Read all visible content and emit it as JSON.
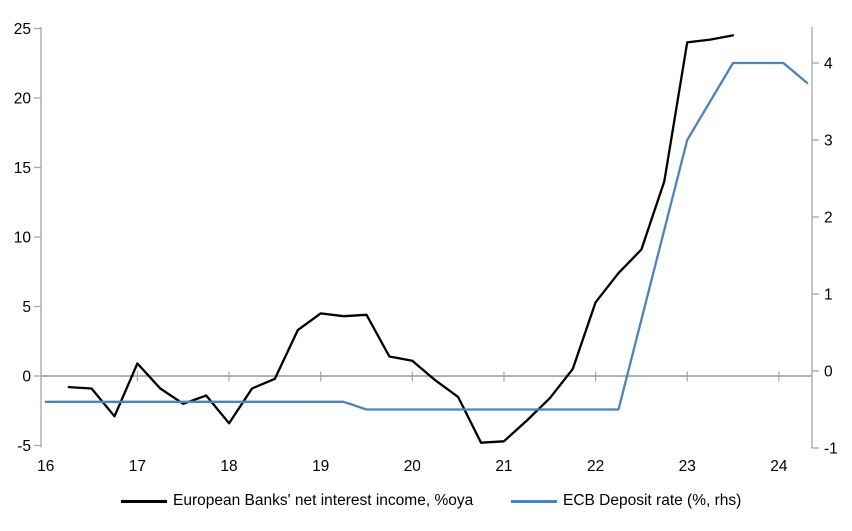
{
  "chart_data": {
    "type": "line",
    "title": "",
    "x_axis": {
      "ticks": [
        16,
        17,
        18,
        19,
        20,
        21,
        22,
        23,
        24
      ],
      "range": [
        16,
        24.36
      ],
      "gridlines": false
    },
    "y_axis_left": {
      "ticks": [
        -5,
        0,
        5,
        10,
        15,
        20,
        25
      ],
      "range": [
        -5.2,
        25.2
      ],
      "gridlines": false,
      "zero_line": true
    },
    "y_axis_right": {
      "ticks": [
        -1,
        0,
        1,
        2,
        3,
        4
      ],
      "range": [
        -1,
        4.45
      ],
      "gridlines": false
    },
    "legend_position": "bottom",
    "series": [
      {
        "name": "European Banks' net interest income, %oya",
        "axis": "left",
        "color": "#000000",
        "x": [
          16.25,
          16.5,
          16.75,
          17.0,
          17.25,
          17.5,
          17.75,
          18.0,
          18.25,
          18.5,
          18.75,
          19.0,
          19.25,
          19.5,
          19.75,
          20.0,
          20.25,
          20.5,
          20.75,
          21.0,
          21.25,
          21.5,
          21.75,
          22.0,
          22.25,
          22.5,
          22.75,
          23.0,
          23.25,
          23.5
        ],
        "y": [
          -0.8,
          -0.9,
          -2.9,
          0.9,
          -0.9,
          -2.0,
          -1.4,
          -3.4,
          -0.9,
          -0.2,
          3.3,
          4.5,
          4.3,
          4.4,
          1.4,
          1.1,
          -0.3,
          -1.5,
          -4.8,
          -4.7,
          -3.2,
          -1.6,
          0.5,
          5.3,
          7.4,
          9.1,
          14.0,
          24.0,
          24.2,
          24.5
        ]
      },
      {
        "name": "ECB Deposit rate (%, rhs)",
        "axis": "right",
        "color": "#4f81bd",
        "x": [
          16.0,
          19.25,
          19.5,
          22.25,
          23.0,
          23.5,
          24.05,
          24.31
        ],
        "y": [
          -0.4,
          -0.4,
          -0.5,
          -0.5,
          3.0,
          4.0,
          4.0,
          3.74
        ]
      }
    ]
  },
  "colors": {
    "axis_line": "#a6a6a6",
    "zero_line": "#a6a6a6",
    "text": "#000000",
    "background": "#ffffff"
  }
}
